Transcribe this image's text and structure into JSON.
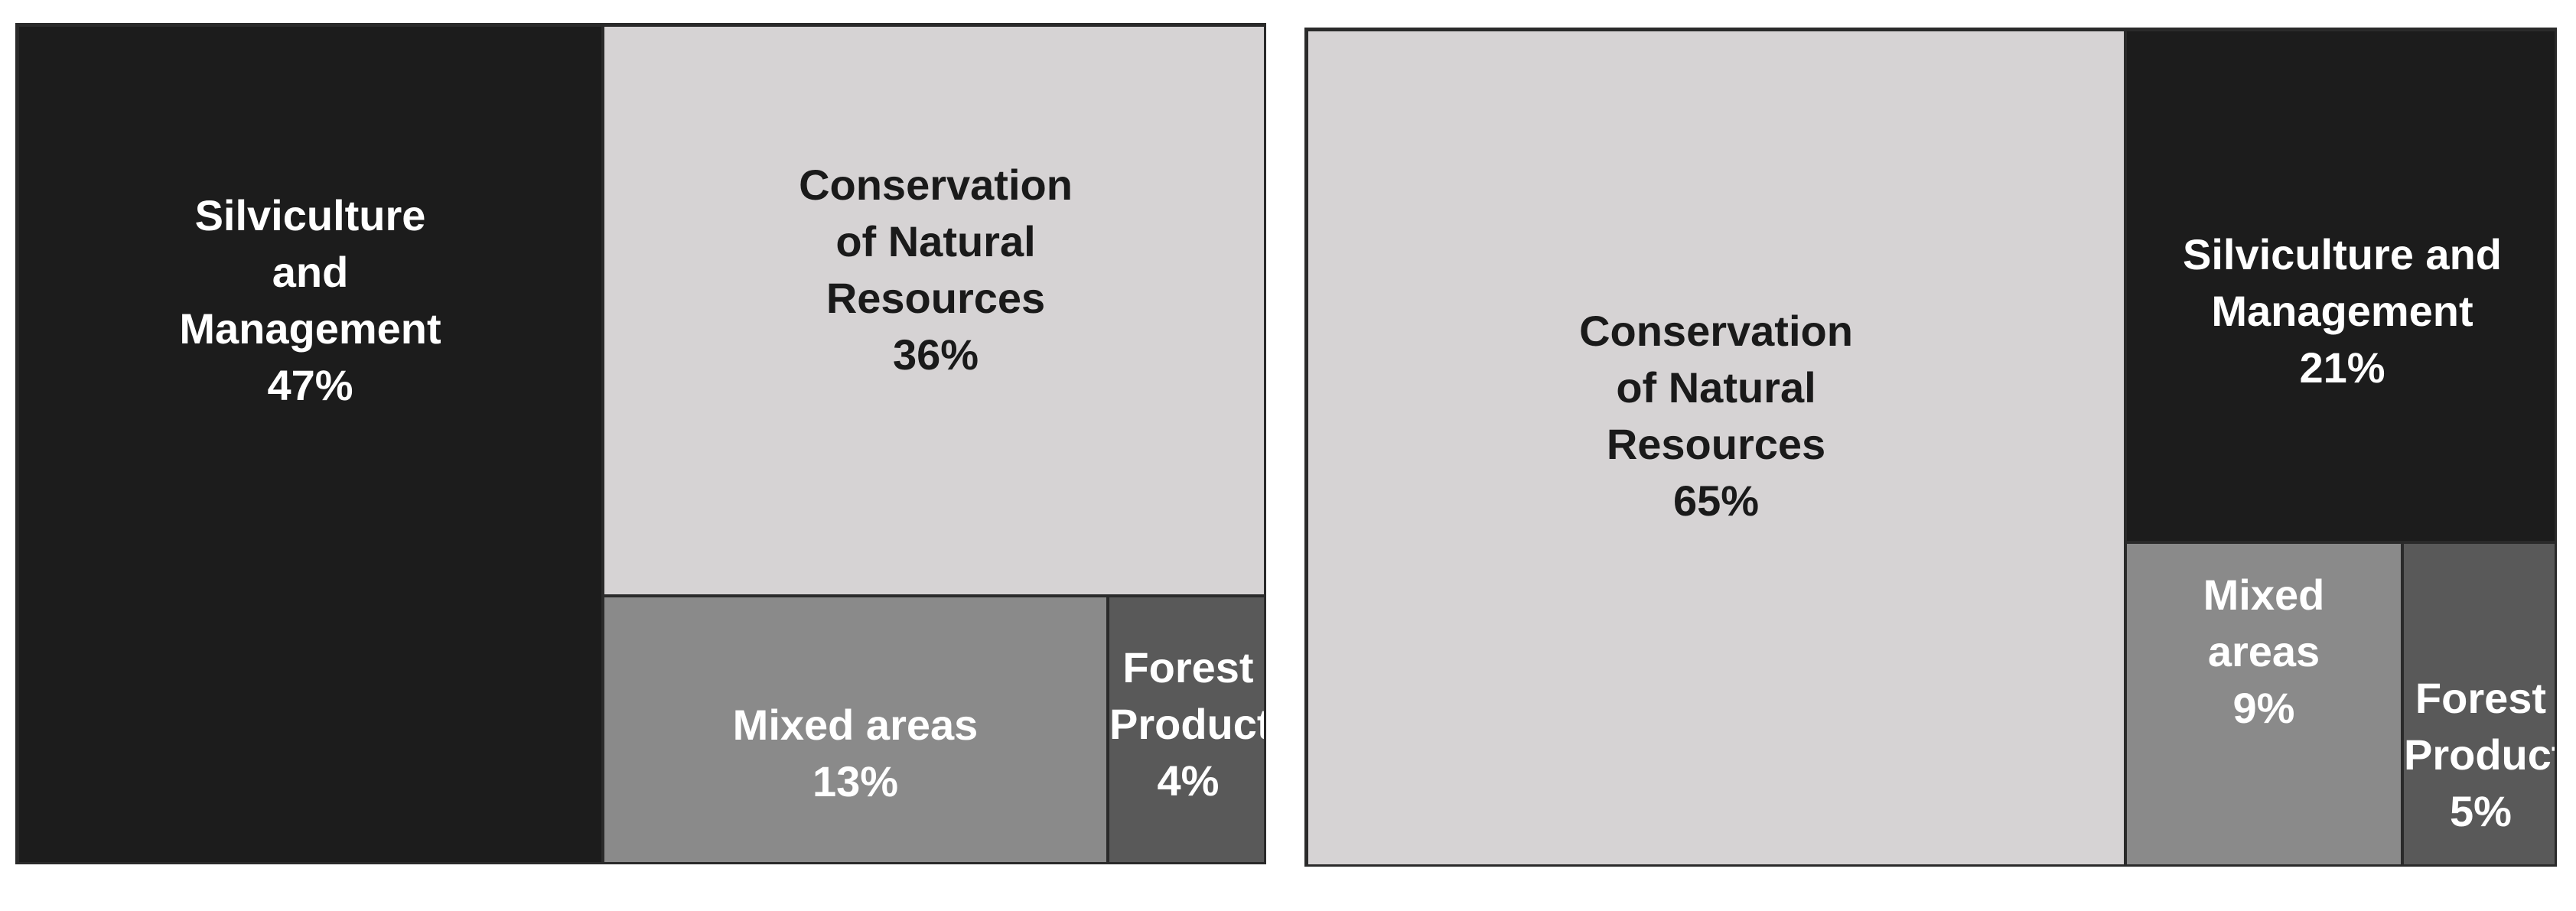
{
  "chart_data": [
    {
      "type": "treemap",
      "tiles": [
        {
          "label_lines": [
            "Silviculture",
            "and",
            "Management"
          ],
          "value_text": "47%",
          "value": 47,
          "color": "#1c1c1c"
        },
        {
          "label_lines": [
            "Conservation",
            "of Natural",
            "Resources"
          ],
          "value_text": "36%",
          "value": 36,
          "color": "#d6d3d4"
        },
        {
          "label_lines": [
            "Mixed areas"
          ],
          "value_text": "13%",
          "value": 13,
          "color": "#8a8a8a"
        },
        {
          "label_lines": [
            "Forest",
            "Products"
          ],
          "value_text": "4%",
          "value": 4,
          "color": "#595959"
        }
      ]
    },
    {
      "type": "treemap",
      "tiles": [
        {
          "label_lines": [
            "Conservation",
            "of Natural",
            "Resources"
          ],
          "value_text": "65%",
          "value": 65,
          "color": "#d6d3d4"
        },
        {
          "label_lines": [
            "Silviculture and",
            "Management"
          ],
          "value_text": "21%",
          "value": 21,
          "color": "#1c1c1c"
        },
        {
          "label_lines": [
            "Mixed",
            "areas"
          ],
          "value_text": "9%",
          "value": 9,
          "color": "#8a8a8a"
        },
        {
          "label_lines": [
            "Forest",
            "Products"
          ],
          "value_text": "5%",
          "value": 5,
          "color": "#595959"
        }
      ]
    }
  ]
}
